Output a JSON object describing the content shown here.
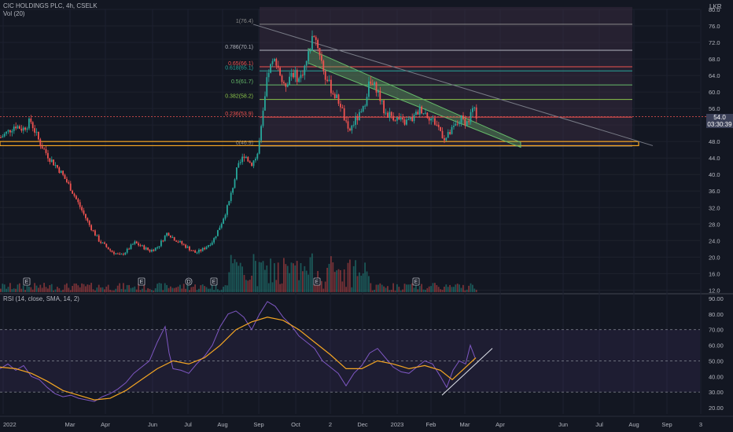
{
  "header": {
    "symbol": "CIC HOLDINGS PLC, 4h, CSELK",
    "volume_label": "Vol (20)",
    "currency": "LKR"
  },
  "price_badge": {
    "price": "54.0",
    "countdown": "03:30:39"
  },
  "rsi_label": "RSI (14, close, SMA, 14, 2)",
  "colors": {
    "background": "#131722",
    "up": "#26a69a",
    "down": "#ef5350",
    "rsi_line": "#7e57c2",
    "rsi_ma": "#f5a623",
    "fib_zone": "#3d2f45",
    "channel": "#66bb6a",
    "support": "#f5a623"
  },
  "chart_data": [
    {
      "type": "candlestick",
      "y_axis_ticks": [
        12.0,
        16.0,
        20.0,
        24.0,
        28.0,
        32.0,
        36.0,
        40.0,
        44.0,
        48.0,
        52.0,
        56.0,
        60.0,
        64.0,
        68.0,
        72.0,
        76.0,
        80.0
      ],
      "ylim": [
        11.5,
        80.0
      ],
      "x_axis_ticks": [
        "2022",
        "Mar",
        "Apr",
        "Jun",
        "Jul",
        "Aug",
        "Sep",
        "Oct",
        "2",
        "Dec",
        "2023",
        "Feb",
        "Mar",
        "Apr",
        "Jun",
        "Jul",
        "Aug",
        "Sep",
        "3"
      ],
      "x_tick_t": [
        4,
        89,
        134,
        194,
        239,
        283,
        329,
        376,
        420,
        461,
        505,
        548,
        591,
        636,
        716,
        762,
        806,
        848,
        891
      ],
      "price_path": [
        [
          0,
          49
        ],
        [
          10,
          50.5
        ],
        [
          18,
          52
        ],
        [
          28,
          51
        ],
        [
          38,
          53
        ],
        [
          50,
          47.5
        ],
        [
          62,
          44
        ],
        [
          75,
          41
        ],
        [
          88,
          37
        ],
        [
          100,
          32.5
        ],
        [
          112,
          28
        ],
        [
          125,
          24
        ],
        [
          140,
          21.5
        ],
        [
          152,
          20.3
        ],
        [
          160,
          21.5
        ],
        [
          170,
          23.5
        ],
        [
          180,
          22.5
        ],
        [
          190,
          21.5
        ],
        [
          200,
          22.5
        ],
        [
          212,
          26
        ],
        [
          220,
          24.5
        ],
        [
          232,
          23
        ],
        [
          248,
          21
        ],
        [
          258,
          22
        ],
        [
          270,
          24
        ],
        [
          280,
          28
        ],
        [
          290,
          33
        ],
        [
          300,
          41
        ],
        [
          310,
          45
        ],
        [
          318,
          42.5
        ],
        [
          326,
          44.5
        ],
        [
          332,
          52
        ],
        [
          340,
          65
        ],
        [
          350,
          68
        ],
        [
          360,
          61
        ],
        [
          370,
          65
        ],
        [
          380,
          63
        ],
        [
          390,
          68
        ],
        [
          398,
          74.5
        ],
        [
          405,
          70
        ],
        [
          412,
          64
        ],
        [
          422,
          60
        ],
        [
          432,
          57
        ],
        [
          442,
          50
        ],
        [
          450,
          53
        ],
        [
          460,
          55
        ],
        [
          468,
          62
        ],
        [
          478,
          61
        ],
        [
          488,
          55
        ],
        [
          500,
          54
        ],
        [
          512,
          52.5
        ],
        [
          524,
          53.5
        ],
        [
          534,
          56
        ],
        [
          545,
          54
        ],
        [
          555,
          52
        ],
        [
          565,
          48.5
        ],
        [
          575,
          51
        ],
        [
          585,
          53.5
        ],
        [
          594,
          52.5
        ],
        [
          600,
          56
        ],
        [
          606,
          54
        ]
      ],
      "last_price": 54.0,
      "fib_levels": [
        {
          "label": "1(76.4)",
          "value": 76.4,
          "color": "#8a8a8a"
        },
        {
          "label": "0.786(70.1)",
          "value": 70.1,
          "color": "#b2b5be"
        },
        {
          "label": "0.65(66.1)",
          "value": 66.1,
          "color": "#ef5350"
        },
        {
          "label": "0.618(65.1)",
          "value": 65.1,
          "color": "#26a69a"
        },
        {
          "label": "0.5(61.7)",
          "value": 61.7,
          "color": "#66bb6a"
        },
        {
          "label": "0.382(58.2)",
          "value": 58.2,
          "color": "#8bc34a"
        },
        {
          "label": "0.236(53.9)",
          "value": 53.9,
          "color": "#ef5350"
        },
        {
          "label": "0(46.9)",
          "value": 46.9,
          "color": "#8a8a8a"
        }
      ],
      "fib_t_range": [
        330,
        804
      ],
      "support_zone": {
        "low": 47.0,
        "high": 48.0,
        "t_end": 812
      },
      "trendline": [
        [
          322,
          76.4
        ],
        [
          830,
          47.0
        ]
      ],
      "channel": {
        "upper": [
          [
            392,
            70.5
          ],
          [
            662,
            47.8
          ]
        ],
        "lower": [
          [
            392,
            67.0
          ],
          [
            662,
            46.6
          ]
        ]
      },
      "earnings_markers": [
        {
          "label": "E",
          "t": 34
        },
        {
          "label": "E",
          "t": 180
        },
        {
          "label": "D",
          "t": 240
        },
        {
          "label": "E",
          "t": 272
        },
        {
          "label": "E",
          "t": 403
        },
        {
          "label": "E",
          "t": 529
        }
      ]
    },
    {
      "type": "line",
      "title": "RSI (14, close, SMA, 14, 2)",
      "y_axis_ticks": [
        20.0,
        30.0,
        40.0,
        50.0,
        60.0,
        70.0,
        80.0,
        90.0
      ],
      "ylim": [
        16,
        92
      ],
      "levels": [
        70,
        50,
        30
      ],
      "series": [
        {
          "values": [
            [
              0,
              45
            ],
            [
              10,
              48
            ],
            [
              20,
              44
            ],
            [
              30,
              47
            ],
            [
              40,
              40
            ],
            [
              50,
              38
            ],
            [
              60,
              33
            ],
            [
              70,
              29
            ],
            [
              80,
              27
            ],
            [
              90,
              28
            ],
            [
              100,
              26
            ],
            [
              110,
              25
            ],
            [
              120,
              24
            ],
            [
              130,
              27
            ],
            [
              140,
              29
            ],
            [
              150,
              32
            ],
            [
              160,
              36
            ],
            [
              170,
              42
            ],
            [
              180,
              46
            ],
            [
              190,
              50
            ],
            [
              200,
              62
            ],
            [
              210,
              72
            ],
            [
              215,
              55
            ],
            [
              220,
              45
            ],
            [
              230,
              44
            ],
            [
              240,
              42
            ],
            [
              250,
              48
            ],
            [
              260,
              53
            ],
            [
              270,
              60
            ],
            [
              280,
              72
            ],
            [
              290,
              80
            ],
            [
              300,
              82
            ],
            [
              310,
              78
            ],
            [
              320,
              70
            ],
            [
              330,
              80
            ],
            [
              340,
              88
            ],
            [
              350,
              85
            ],
            [
              360,
              78
            ],
            [
              370,
              73
            ],
            [
              380,
              66
            ],
            [
              390,
              62
            ],
            [
              400,
              58
            ],
            [
              410,
              50
            ],
            [
              420,
              46
            ],
            [
              430,
              42
            ],
            [
              440,
              34
            ],
            [
              450,
              42
            ],
            [
              460,
              47
            ],
            [
              470,
              55
            ],
            [
              480,
              58
            ],
            [
              490,
              52
            ],
            [
              500,
              46
            ],
            [
              510,
              43
            ],
            [
              520,
              42
            ],
            [
              530,
              46
            ],
            [
              540,
              50
            ],
            [
              550,
              48
            ],
            [
              560,
              40
            ],
            [
              568,
              33
            ],
            [
              576,
              44
            ],
            [
              584,
              50
            ],
            [
              592,
              48
            ],
            [
              598,
              60
            ],
            [
              604,
              52
            ]
          ]
        },
        {
          "values": [
            [
              0,
              46
            ],
            [
              20,
              45
            ],
            [
              40,
              42
            ],
            [
              60,
              37
            ],
            [
              80,
              31
            ],
            [
              100,
              28
            ],
            [
              120,
              25
            ],
            [
              140,
              26
            ],
            [
              160,
              31
            ],
            [
              180,
              38
            ],
            [
              200,
              45
            ],
            [
              220,
              50
            ],
            [
              240,
              48
            ],
            [
              260,
              52
            ],
            [
              280,
              60
            ],
            [
              300,
              70
            ],
            [
              320,
              75
            ],
            [
              340,
              78
            ],
            [
              360,
              76
            ],
            [
              380,
              70
            ],
            [
              400,
              62
            ],
            [
              420,
              54
            ],
            [
              440,
              45
            ],
            [
              460,
              45
            ],
            [
              480,
              50
            ],
            [
              500,
              48
            ],
            [
              520,
              45
            ],
            [
              540,
              47
            ],
            [
              560,
              44
            ],
            [
              575,
              38
            ],
            [
              590,
              45
            ],
            [
              605,
              52
            ]
          ]
        }
      ],
      "trendline": [
        [
          562,
          28
        ],
        [
          626,
          58
        ]
      ]
    }
  ]
}
